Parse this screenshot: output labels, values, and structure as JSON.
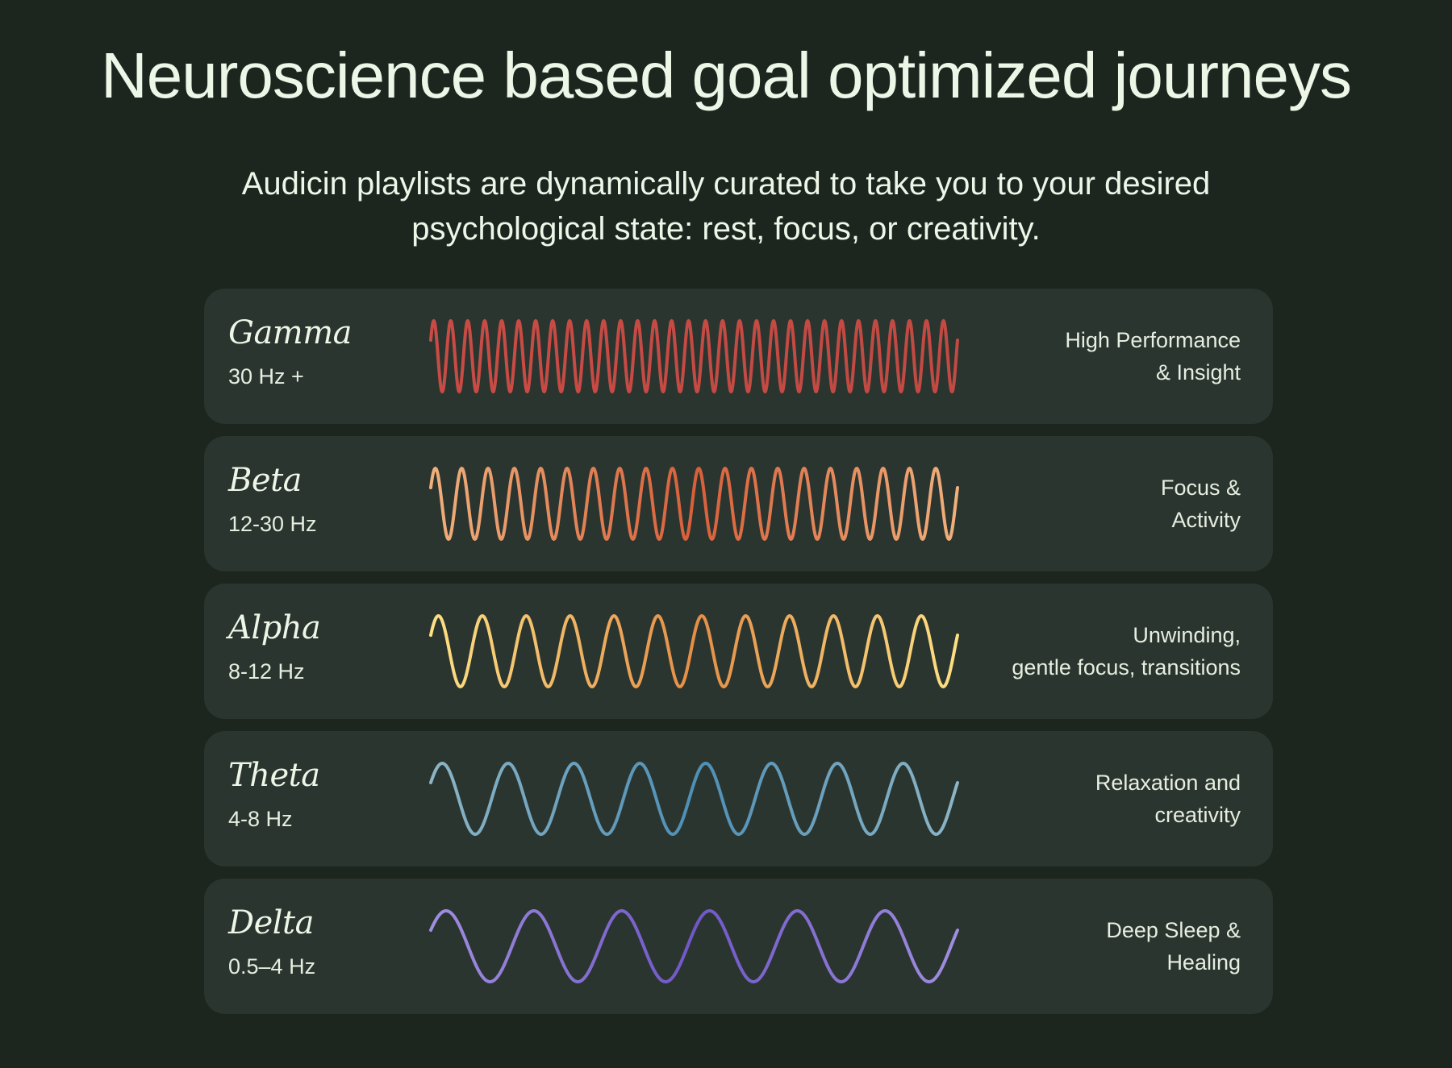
{
  "title": "Neuroscience based goal optimized journeys",
  "subtitle": "Audicin playlists are dynamically curated to take you to your desired psychological state: rest, focus, or creativity.",
  "bands": [
    {
      "name": "Gamma",
      "frequency": "30 Hz +",
      "effect_line1": "High Performance",
      "effect_line2": "& Insight",
      "cycles": 31,
      "colors": [
        "#c94b45",
        "#c14a43"
      ]
    },
    {
      "name": "Beta",
      "frequency": "12-30 Hz",
      "effect_line1": "Focus &",
      "effect_line2": "Activity",
      "cycles": 20,
      "colors": [
        "#f0b07c",
        "#d85f3a",
        "#f0b07c"
      ]
    },
    {
      "name": "Alpha",
      "frequency": "8-12 Hz",
      "effect_line1": "Unwinding,",
      "effect_line2": "gentle focus, transitions",
      "cycles": 12,
      "colors": [
        "#fde084",
        "#e48e47",
        "#fde084"
      ]
    },
    {
      "name": "Theta",
      "frequency": "4-8 Hz",
      "effect_line1": "Relaxation and",
      "effect_line2": "creativity",
      "cycles": 8,
      "colors": [
        "#8cb5c6",
        "#4e8fb6",
        "#8cb5c6"
      ]
    },
    {
      "name": "Delta",
      "frequency": "0.5–4 Hz",
      "effect_line1": "Deep Sleep &",
      "effect_line2": "Healing",
      "cycles": 6,
      "colors": [
        "#a08ee0",
        "#6f57c8",
        "#a08ee0"
      ]
    }
  ]
}
